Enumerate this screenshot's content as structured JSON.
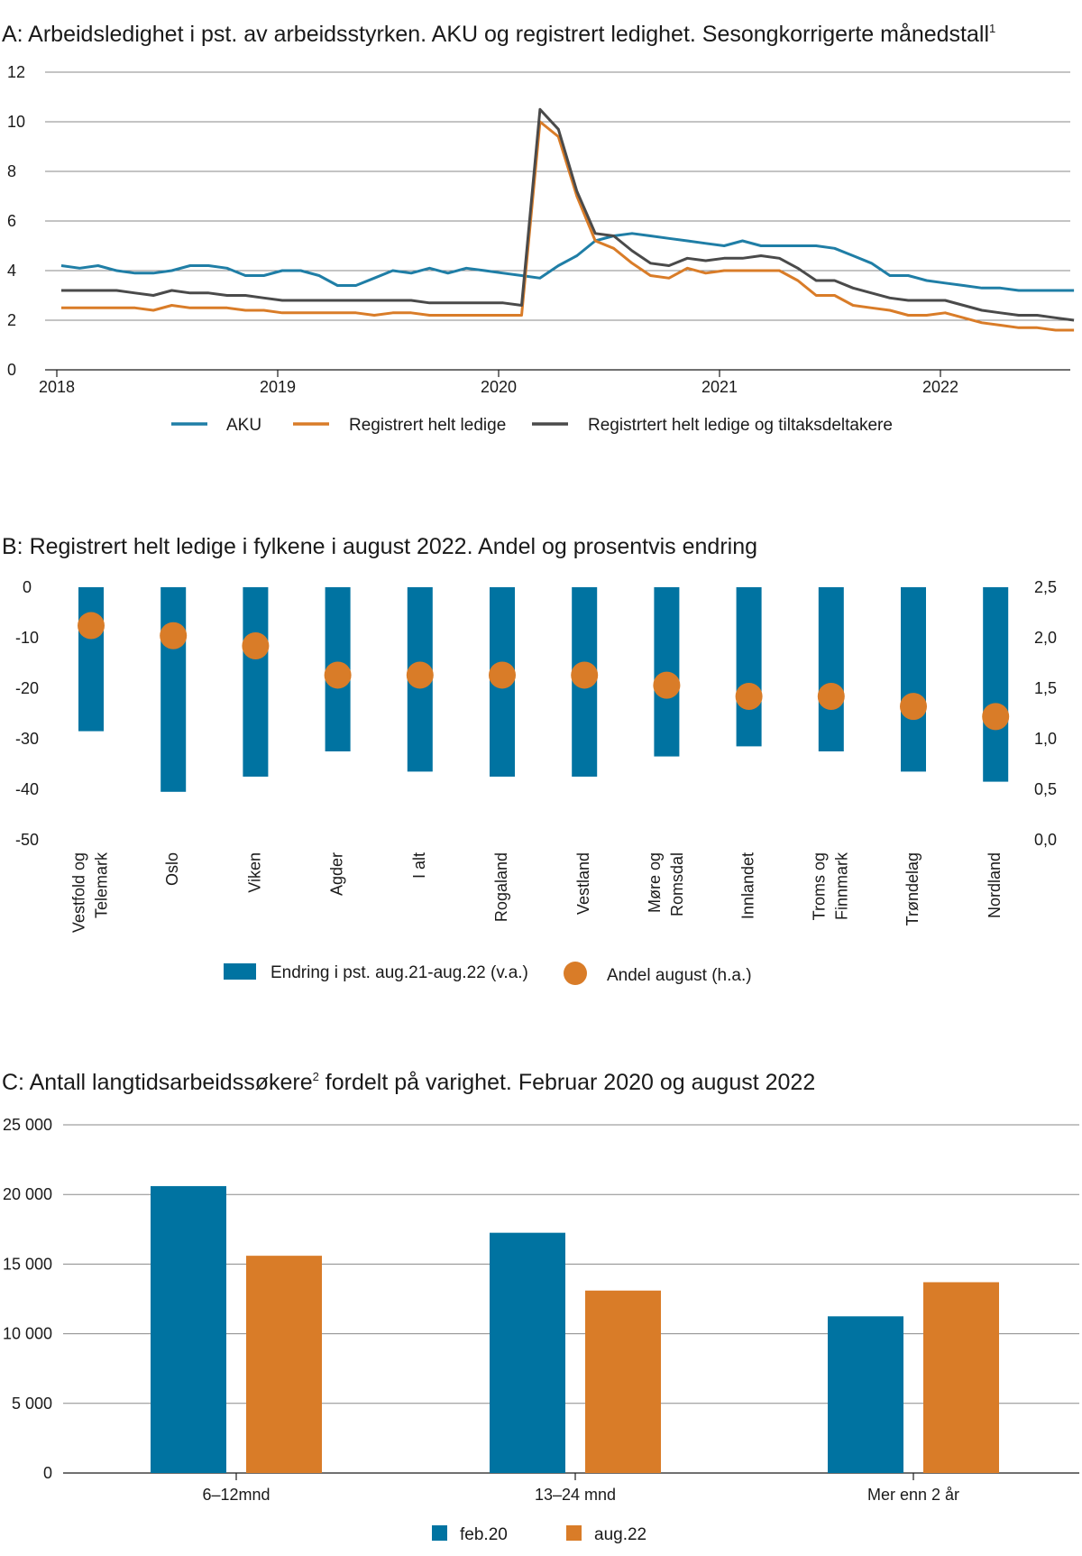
{
  "chart_data": [
    {
      "panel": "A",
      "type": "line",
      "title": "A:  Arbeidsledighet i pst. av arbeidsstyrken. AKU og registrert ledighet. Sesongkorrigerte månedstall",
      "title_sup": "1",
      "ylim": [
        0,
        12
      ],
      "yticks": [
        "0",
        "2",
        "4",
        "6",
        "8",
        "10",
        "12"
      ],
      "xtick_labels": [
        "2018",
        "2019",
        "2020",
        "2021",
        "2022"
      ],
      "x_start": "2018-01",
      "colors": {
        "AKU": "#1f7ea6",
        "Registrert helt ledige": "#d97c28",
        "Registrtert helt ledige og tiltaksdeltakere": "#4a4a4a"
      },
      "series": [
        {
          "name": "AKU",
          "values": [
            4.2,
            4.1,
            4.2,
            4.0,
            3.9,
            3.9,
            4.0,
            4.2,
            4.2,
            4.1,
            3.8,
            3.8,
            4.0,
            4.0,
            3.8,
            3.4,
            3.4,
            3.7,
            4.0,
            3.9,
            4.1,
            3.9,
            4.1,
            4.0,
            3.9,
            3.8,
            3.7,
            4.2,
            4.6,
            5.2,
            5.4,
            5.5,
            5.4,
            5.3,
            5.2,
            5.1,
            5.0,
            5.2,
            5.0,
            5.0,
            5.0,
            5.0,
            4.9,
            4.6,
            4.3,
            3.8,
            3.8,
            3.6,
            3.5,
            3.4,
            3.3,
            3.3,
            3.2,
            3.2,
            3.2,
            3.2
          ]
        },
        {
          "name": "Registrert helt ledige",
          "values": [
            2.5,
            2.5,
            2.5,
            2.5,
            2.5,
            2.4,
            2.6,
            2.5,
            2.5,
            2.5,
            2.4,
            2.4,
            2.3,
            2.3,
            2.3,
            2.3,
            2.3,
            2.2,
            2.3,
            2.3,
            2.2,
            2.2,
            2.2,
            2.2,
            2.2,
            2.2,
            10.0,
            9.4,
            7.0,
            5.2,
            4.9,
            4.3,
            3.8,
            3.7,
            4.1,
            3.9,
            4.0,
            4.0,
            4.0,
            4.0,
            3.6,
            3.0,
            3.0,
            2.6,
            2.5,
            2.4,
            2.2,
            2.2,
            2.3,
            2.1,
            1.9,
            1.8,
            1.7,
            1.7,
            1.6,
            1.6
          ]
        },
        {
          "name": "Registrtert helt ledige og tiltaksdeltakere",
          "values": [
            3.2,
            3.2,
            3.2,
            3.2,
            3.1,
            3.0,
            3.2,
            3.1,
            3.1,
            3.0,
            3.0,
            2.9,
            2.8,
            2.8,
            2.8,
            2.8,
            2.8,
            2.8,
            2.8,
            2.8,
            2.7,
            2.7,
            2.7,
            2.7,
            2.7,
            2.6,
            10.5,
            9.7,
            7.2,
            5.5,
            5.4,
            4.8,
            4.3,
            4.2,
            4.5,
            4.4,
            4.5,
            4.5,
            4.6,
            4.5,
            4.1,
            3.6,
            3.6,
            3.3,
            3.1,
            2.9,
            2.8,
            2.8,
            2.8,
            2.6,
            2.4,
            2.3,
            2.2,
            2.2,
            2.1,
            2.0
          ]
        }
      ],
      "legend": [
        "AKU",
        "Registrert helt ledige",
        "Registrtert helt ledige og tiltaksdeltakere"
      ]
    },
    {
      "panel": "B",
      "type": "bar",
      "title": "B:  Registrert helt ledige i fylkene i august 2022. Andel og prosentvis endring",
      "categories": [
        [
          "Vestfold og",
          "Telemark"
        ],
        [
          "Oslo"
        ],
        [
          "Viken"
        ],
        [
          "Agder"
        ],
        [
          "I alt"
        ],
        [
          "Rogaland"
        ],
        [
          "Vestland"
        ],
        [
          "Møre og",
          "Romsdal"
        ],
        [
          "Innlandet"
        ],
        [
          "Troms og",
          "Finnmark"
        ],
        [
          "Trøndelag"
        ],
        [
          "Nordland"
        ]
      ],
      "series": [
        {
          "name": "Endring i pst. aug.21-aug.22 (v.a.)",
          "axis": "left",
          "color": "#0073a1",
          "values": [
            -28.5,
            -40.5,
            -37.5,
            -32.5,
            -36.5,
            -37.5,
            -37.5,
            -33.5,
            -31.5,
            -32.5,
            -36.5,
            -38.5
          ]
        },
        {
          "name": "Andel august (h.a.)",
          "axis": "right",
          "color": "#d97c28",
          "values": [
            2.12,
            2.02,
            1.92,
            1.63,
            1.63,
            1.63,
            1.63,
            1.53,
            1.42,
            1.42,
            1.32,
            1.22
          ]
        }
      ],
      "ylim_left": [
        -50,
        0
      ],
      "yticks_left": [
        "0",
        "-10",
        "-20",
        "-30",
        "-40",
        "-50"
      ],
      "ylim_right": [
        0,
        2.5
      ],
      "yticks_right": [
        "2,5",
        "2,0",
        "1,5",
        "1,0",
        "0,5",
        "0,0"
      ]
    },
    {
      "panel": "C",
      "type": "bar",
      "title_pre": "C:  Antall langtidsarbeidssøkere",
      "title_sup": "2",
      "title_post": " fordelt på varighet. Februar 2020 og august 2022",
      "categories": [
        "6–12mnd",
        "13–24 mnd",
        "Mer enn 2 år"
      ],
      "series": [
        {
          "name": "feb.20",
          "color": "#0073a1",
          "values": [
            20600,
            17250,
            11250
          ]
        },
        {
          "name": "aug.22",
          "color": "#d97c28",
          "values": [
            15600,
            13100,
            13700
          ]
        }
      ],
      "ylim": [
        0,
        25000
      ],
      "yticks": [
        "0",
        "5 000",
        "10 000",
        "15 000",
        "20 000",
        "25 000"
      ]
    }
  ]
}
